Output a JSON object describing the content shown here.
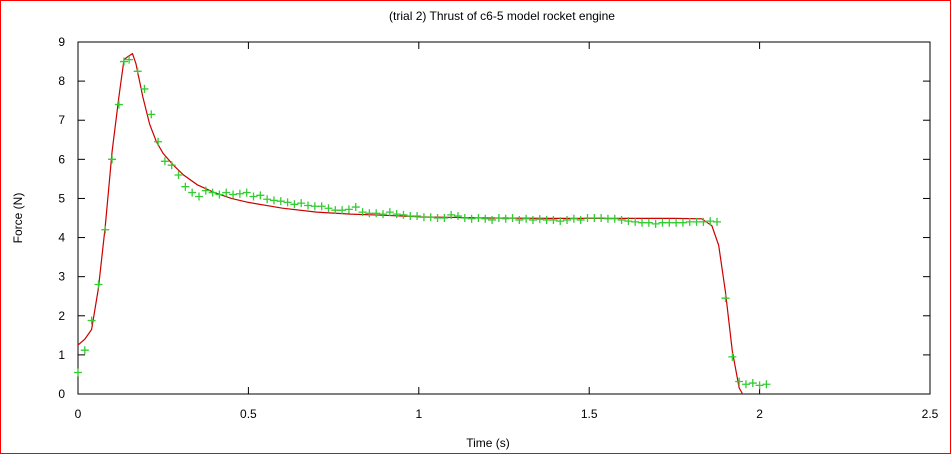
{
  "chart_data": {
    "type": "scatter",
    "title": "(trial 2) Thrust of c6-5 model rocket engine",
    "xlabel": "Time (s)",
    "ylabel": "Force (N)",
    "xlim": [
      0,
      2.5
    ],
    "ylim": [
      0,
      9
    ],
    "x_ticks": [
      "0",
      "0.5",
      "1",
      "1.5",
      "2",
      "2.5"
    ],
    "y_ticks": [
      "0",
      "1",
      "2",
      "3",
      "4",
      "5",
      "6",
      "7",
      "8",
      "9"
    ],
    "grid": false,
    "legend": "none",
    "series": [
      {
        "style": "points-plus",
        "color": "#33cc33",
        "points": [
          [
            0.0,
            0.55
          ],
          [
            0.02,
            1.12
          ],
          [
            0.04,
            1.88
          ],
          [
            0.06,
            2.8
          ],
          [
            0.08,
            4.2
          ],
          [
            0.1,
            6.0
          ],
          [
            0.12,
            7.4
          ],
          [
            0.135,
            8.5
          ],
          [
            0.15,
            8.55
          ],
          [
            0.175,
            8.25
          ],
          [
            0.195,
            7.8
          ],
          [
            0.215,
            7.15
          ],
          [
            0.235,
            6.45
          ],
          [
            0.255,
            5.95
          ],
          [
            0.275,
            5.85
          ],
          [
            0.295,
            5.6
          ],
          [
            0.315,
            5.3
          ],
          [
            0.335,
            5.15
          ],
          [
            0.355,
            5.05
          ],
          [
            0.375,
            5.2
          ],
          [
            0.395,
            5.15
          ],
          [
            0.415,
            5.1
          ],
          [
            0.435,
            5.15
          ],
          [
            0.455,
            5.1
          ],
          [
            0.475,
            5.12
          ],
          [
            0.495,
            5.15
          ],
          [
            0.515,
            5.05
          ],
          [
            0.535,
            5.08
          ],
          [
            0.555,
            4.98
          ],
          [
            0.575,
            4.95
          ],
          [
            0.595,
            4.93
          ],
          [
            0.615,
            4.9
          ],
          [
            0.635,
            4.85
          ],
          [
            0.655,
            4.88
          ],
          [
            0.675,
            4.82
          ],
          [
            0.695,
            4.8
          ],
          [
            0.715,
            4.8
          ],
          [
            0.735,
            4.75
          ],
          [
            0.755,
            4.7
          ],
          [
            0.775,
            4.7
          ],
          [
            0.795,
            4.72
          ],
          [
            0.815,
            4.78
          ],
          [
            0.835,
            4.65
          ],
          [
            0.855,
            4.62
          ],
          [
            0.875,
            4.62
          ],
          [
            0.895,
            4.6
          ],
          [
            0.915,
            4.65
          ],
          [
            0.935,
            4.6
          ],
          [
            0.955,
            4.58
          ],
          [
            0.975,
            4.55
          ],
          [
            0.995,
            4.55
          ],
          [
            1.015,
            4.52
          ],
          [
            1.035,
            4.52
          ],
          [
            1.055,
            4.5
          ],
          [
            1.075,
            4.5
          ],
          [
            1.095,
            4.58
          ],
          [
            1.115,
            4.55
          ],
          [
            1.135,
            4.5
          ],
          [
            1.155,
            4.48
          ],
          [
            1.175,
            4.5
          ],
          [
            1.195,
            4.48
          ],
          [
            1.215,
            4.45
          ],
          [
            1.235,
            4.5
          ],
          [
            1.255,
            4.48
          ],
          [
            1.275,
            4.5
          ],
          [
            1.295,
            4.45
          ],
          [
            1.315,
            4.48
          ],
          [
            1.335,
            4.45
          ],
          [
            1.355,
            4.47
          ],
          [
            1.375,
            4.45
          ],
          [
            1.395,
            4.45
          ],
          [
            1.415,
            4.42
          ],
          [
            1.435,
            4.45
          ],
          [
            1.455,
            4.48
          ],
          [
            1.475,
            4.45
          ],
          [
            1.495,
            4.5
          ],
          [
            1.515,
            4.5
          ],
          [
            1.535,
            4.5
          ],
          [
            1.555,
            4.48
          ],
          [
            1.575,
            4.48
          ],
          [
            1.595,
            4.45
          ],
          [
            1.615,
            4.42
          ],
          [
            1.635,
            4.4
          ],
          [
            1.655,
            4.38
          ],
          [
            1.675,
            4.38
          ],
          [
            1.695,
            4.35
          ],
          [
            1.715,
            4.38
          ],
          [
            1.735,
            4.38
          ],
          [
            1.755,
            4.38
          ],
          [
            1.775,
            4.38
          ],
          [
            1.795,
            4.4
          ],
          [
            1.815,
            4.4
          ],
          [
            1.835,
            4.4
          ],
          [
            1.855,
            4.42
          ],
          [
            1.875,
            4.4
          ],
          [
            1.9,
            2.45
          ],
          [
            1.92,
            0.95
          ],
          [
            1.94,
            0.32
          ],
          [
            1.96,
            0.25
          ],
          [
            1.98,
            0.28
          ],
          [
            2.0,
            0.22
          ],
          [
            2.02,
            0.25
          ]
        ]
      },
      {
        "style": "line",
        "color": "#cc0000",
        "points": [
          [
            0.0,
            1.25
          ],
          [
            0.02,
            1.4
          ],
          [
            0.04,
            1.65
          ],
          [
            0.06,
            2.7
          ],
          [
            0.08,
            4.3
          ],
          [
            0.1,
            6.2
          ],
          [
            0.12,
            7.6
          ],
          [
            0.135,
            8.55
          ],
          [
            0.15,
            8.65
          ],
          [
            0.16,
            8.7
          ],
          [
            0.17,
            8.45
          ],
          [
            0.19,
            7.6
          ],
          [
            0.21,
            6.9
          ],
          [
            0.23,
            6.45
          ],
          [
            0.25,
            6.15
          ],
          [
            0.28,
            5.85
          ],
          [
            0.31,
            5.6
          ],
          [
            0.35,
            5.35
          ],
          [
            0.4,
            5.15
          ],
          [
            0.45,
            5.0
          ],
          [
            0.5,
            4.9
          ],
          [
            0.6,
            4.75
          ],
          [
            0.7,
            4.65
          ],
          [
            0.8,
            4.6
          ],
          [
            0.9,
            4.57
          ],
          [
            1.0,
            4.53
          ],
          [
            1.2,
            4.5
          ],
          [
            1.4,
            4.49
          ],
          [
            1.6,
            4.49
          ],
          [
            1.75,
            4.49
          ],
          [
            1.83,
            4.48
          ],
          [
            1.86,
            4.3
          ],
          [
            1.88,
            3.8
          ],
          [
            1.9,
            2.6
          ],
          [
            1.92,
            1.1
          ],
          [
            1.94,
            0.15
          ],
          [
            1.95,
            0.0
          ]
        ]
      }
    ]
  }
}
